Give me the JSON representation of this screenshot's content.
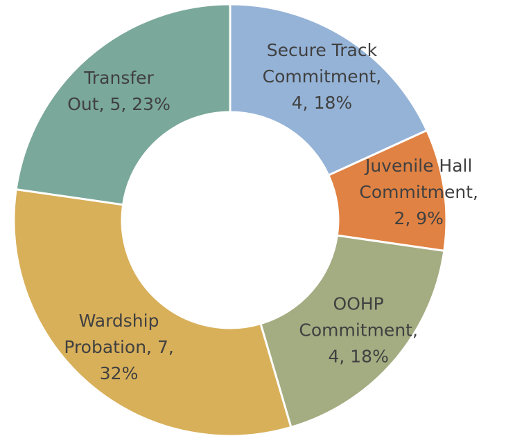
{
  "chart_data": {
    "type": "donut",
    "data_labels": [
      [
        "Secure Track",
        "Commitment,",
        "4, 18%"
      ],
      [
        "Juvenile Hall",
        "Commitment,",
        "2, 9%"
      ],
      [
        "OOHP",
        "Commitment,",
        "4, 18%"
      ],
      [
        "Wardship",
        "Probation, 7,",
        "32%"
      ],
      [
        "Transfer",
        "Out, 5, 23%"
      ]
    ],
    "values": [
      4,
      2,
      4,
      7,
      5
    ],
    "colors": [
      "#95b3d7",
      "#e08243",
      "#a4ac82",
      "#d8b05a",
      "#7aa89a"
    ]
  }
}
